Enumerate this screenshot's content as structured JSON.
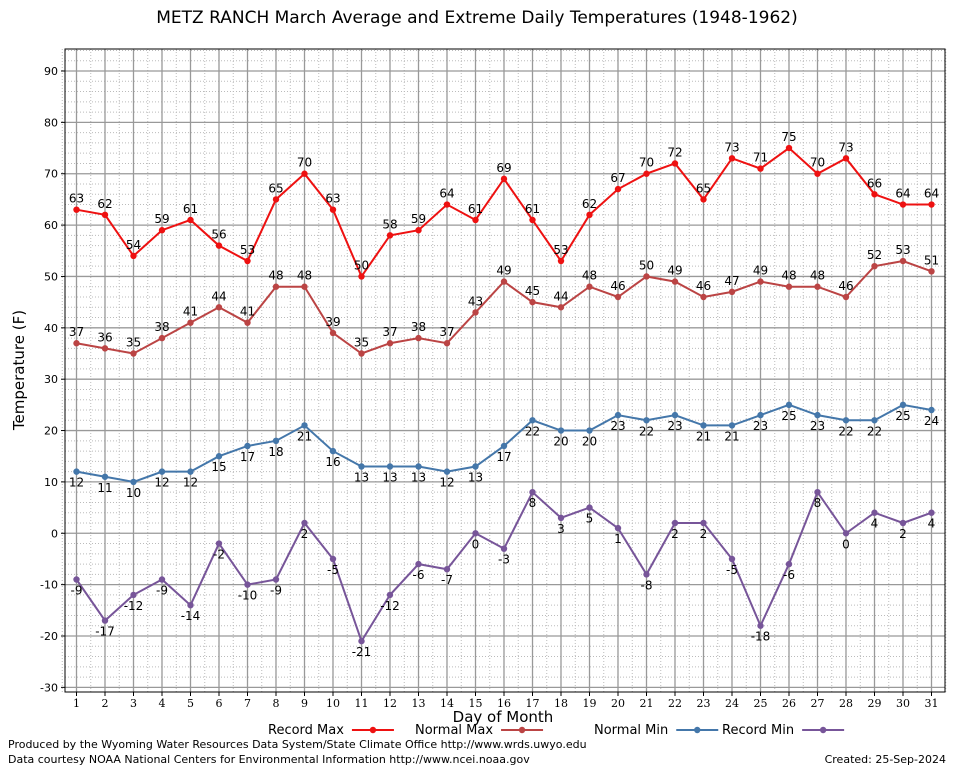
{
  "chart_data": {
    "type": "line",
    "title": "METZ RANCH March Average and Extreme Daily Temperatures (1948-1962)",
    "xlabel": "Day of Month",
    "ylabel": "Temperature (F)",
    "ylim": [
      -30,
      95
    ],
    "yticks": [
      -30,
      -20,
      -10,
      0,
      10,
      20,
      30,
      40,
      50,
      60,
      70,
      80,
      90
    ],
    "x": [
      1,
      2,
      3,
      4,
      5,
      6,
      7,
      8,
      9,
      10,
      11,
      12,
      13,
      14,
      15,
      16,
      17,
      18,
      19,
      20,
      21,
      22,
      23,
      24,
      25,
      26,
      27,
      28,
      29,
      30,
      31
    ],
    "grid": true,
    "legend_position": "bottom",
    "series": [
      {
        "name": "Record Max",
        "color": "#ee1111",
        "values": [
          63,
          62,
          54,
          59,
          61,
          56,
          53,
          65,
          70,
          63,
          50,
          58,
          59,
          64,
          61,
          69,
          61,
          53,
          62,
          67,
          70,
          72,
          65,
          73,
          71,
          75,
          70,
          73,
          66,
          64,
          64
        ]
      },
      {
        "name": "Normal Max",
        "color": "#bb4444",
        "values": [
          37,
          36,
          35,
          38,
          41,
          44,
          41,
          48,
          48,
          39,
          35,
          37,
          38,
          37,
          43,
          49,
          45,
          44,
          48,
          46,
          50,
          49,
          46,
          47,
          49,
          48,
          48,
          46,
          52,
          53,
          51
        ]
      },
      {
        "name": "Normal Min",
        "color": "#4477aa",
        "values": [
          12,
          11,
          10,
          12,
          12,
          15,
          17,
          18,
          21,
          16,
          13,
          13,
          13,
          12,
          13,
          17,
          22,
          20,
          20,
          23,
          22,
          23,
          21,
          21,
          23,
          25,
          23,
          22,
          22,
          25,
          24
        ]
      },
      {
        "name": "Record Min",
        "color": "#775599",
        "values": [
          -9,
          -17,
          -12,
          -9,
          -14,
          -2,
          -10,
          -9,
          2,
          -5,
          -21,
          -12,
          -6,
          -7,
          0,
          -3,
          8,
          3,
          5,
          1,
          -8,
          2,
          2,
          -5,
          -18,
          -6,
          8,
          0,
          4,
          2,
          4
        ]
      }
    ]
  },
  "footer": {
    "produced_by": "Produced by the Wyoming Water Resources Data System/State Climate Office http://www.wrds.uwyo.edu",
    "courtesy": "Data courtesy NOAA National Centers for Environmental Information http://www.ncei.noaa.gov",
    "created": "Created: 25-Sep-2024"
  }
}
